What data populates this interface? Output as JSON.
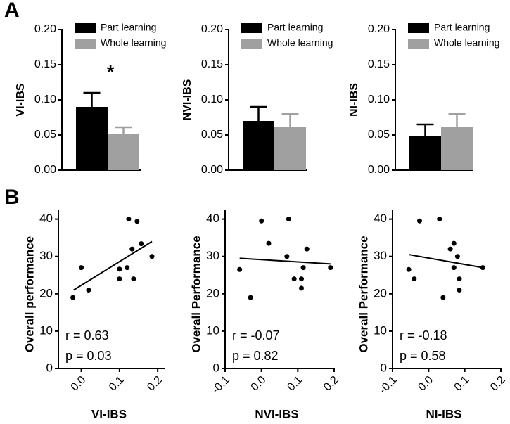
{
  "panels": [
    "A",
    "B"
  ],
  "chart_data": [
    {
      "type": "bar",
      "ylabel": "VI-IBS",
      "categories": [
        null
      ],
      "annotation": "*",
      "ylim": [
        0,
        0.2
      ],
      "yticks": [
        {
          "value": 0,
          "label": "0.00"
        },
        {
          "value": 0.05,
          "label": "0.05"
        },
        {
          "value": 0.1,
          "label": "0.10"
        },
        {
          "value": 0.15,
          "label": "0.15"
        },
        {
          "value": 0.2,
          "label": "0.20"
        }
      ],
      "series": [
        {
          "name": "Part learning",
          "color": "#000000",
          "values": [
            0.09
          ],
          "errors": [
            0.02
          ]
        },
        {
          "name": "Whole learning",
          "color": "#a0a0a0",
          "values": [
            0.051
          ],
          "errors": [
            0.01
          ]
        }
      ]
    },
    {
      "type": "bar",
      "ylabel": "NVI-IBS",
      "categories": [
        null
      ],
      "ylim": [
        0,
        0.2
      ],
      "yticks": [
        {
          "value": 0,
          "label": "0.00"
        },
        {
          "value": 0.05,
          "label": "0.05"
        },
        {
          "value": 0.1,
          "label": "0.10"
        },
        {
          "value": 0.15,
          "label": "0.15"
        },
        {
          "value": 0.2,
          "label": "0.20"
        }
      ],
      "series": [
        {
          "name": "Part learning",
          "color": "#000000",
          "values": [
            0.07
          ],
          "errors": [
            0.02
          ]
        },
        {
          "name": "Whole learning",
          "color": "#a0a0a0",
          "values": [
            0.061
          ],
          "errors": [
            0.019
          ]
        }
      ]
    },
    {
      "type": "bar",
      "ylabel": "NI-IBS",
      "categories": [
        null
      ],
      "ylim": [
        0,
        0.2
      ],
      "yticks": [
        {
          "value": 0,
          "label": "0.00"
        },
        {
          "value": 0.05,
          "label": "0.05"
        },
        {
          "value": 0.1,
          "label": "0.10"
        },
        {
          "value": 0.15,
          "label": "0.15"
        },
        {
          "value": 0.2,
          "label": "0.20"
        }
      ],
      "series": [
        {
          "name": "Part learning",
          "color": "#000000",
          "values": [
            0.049
          ],
          "errors": [
            0.016
          ]
        },
        {
          "name": "Whole learning",
          "color": "#a0a0a0",
          "values": [
            0.061
          ],
          "errors": [
            0.019
          ]
        }
      ]
    },
    {
      "type": "scatter",
      "xlabel": "VI-IBS",
      "ylabel": "Overall performance",
      "color": "#000000",
      "stats": [
        "r = 0.63",
        "p = 0.03"
      ],
      "xlim": [
        -0.06,
        0.22
      ],
      "xticks": [
        {
          "value": 0,
          "label": "0.0"
        },
        0.1,
        0.2
      ],
      "ylim": [
        0,
        42
      ],
      "yticks": [
        0,
        10,
        20,
        30,
        40
      ],
      "x": [
        -0.022,
        0.0,
        0.019,
        0.1,
        0.1,
        0.12,
        0.124,
        0.146,
        0.133,
        0.137,
        0.157,
        0.185
      ],
      "y": [
        19,
        27,
        21,
        26.6,
        24,
        27,
        40,
        39.4,
        32,
        24,
        33.4,
        30
      ],
      "trend": {
        "x": [
          -0.02,
          0.185
        ],
        "y": [
          21,
          34
        ]
      }
    },
    {
      "type": "scatter",
      "xlabel": "NVI-IBS",
      "ylabel": "Overall Performance",
      "color": "#000000",
      "stats": [
        "r = -0.07",
        "p = 0.82"
      ],
      "xlim": [
        -0.1,
        0.2
      ],
      "xticks": [
        -0.1,
        {
          "value": 0,
          "label": "0.0"
        },
        0.1,
        0.2
      ],
      "ylim": [
        0,
        42
      ],
      "yticks": [
        0,
        10,
        20,
        30,
        40
      ],
      "x": [
        -0.06,
        -0.03,
        0.0,
        0.02,
        0.075,
        0.07,
        0.09,
        0.11,
        0.11,
        0.115,
        0.125,
        0.19
      ],
      "y": [
        26.5,
        19,
        39.5,
        33.5,
        40,
        30,
        24,
        24,
        21.5,
        27,
        32,
        27
      ],
      "trend": {
        "x": [
          -0.06,
          0.19
        ],
        "y": [
          29.5,
          28
        ]
      }
    },
    {
      "type": "scatter",
      "xlabel": "NI-IBS",
      "ylabel": "Overall Performance",
      "color": "#000000",
      "stats": [
        "r = -0.18",
        "p = 0.58"
      ],
      "xlim": [
        -0.1,
        0.2
      ],
      "xticks": [
        -0.1,
        {
          "value": 0,
          "label": "0.0"
        },
        0.1,
        0.2
      ],
      "ylim": [
        0,
        42
      ],
      "yticks": [
        0,
        10,
        20,
        30,
        40
      ],
      "x": [
        -0.055,
        -0.04,
        -0.025,
        0.03,
        0.04,
        0.06,
        0.07,
        0.07,
        0.08,
        0.085,
        0.085,
        0.15
      ],
      "y": [
        26.5,
        24,
        39.5,
        40,
        19,
        32,
        33.5,
        27,
        30,
        24,
        21,
        27
      ],
      "trend": {
        "x": [
          -0.055,
          0.15
        ],
        "y": [
          30.5,
          27
        ]
      }
    }
  ]
}
